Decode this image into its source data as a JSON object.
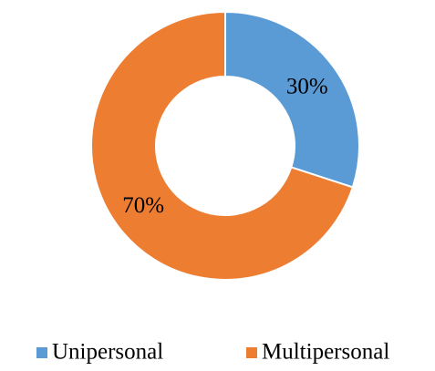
{
  "chart_data": {
    "type": "donut",
    "categories": [
      "Unipersonal",
      "Multipersonal"
    ],
    "values": [
      30,
      70
    ],
    "value_labels": [
      "30%",
      "70%"
    ],
    "colors": [
      "#5b9bd5",
      "#ed7d31"
    ],
    "legend": "bottom"
  }
}
